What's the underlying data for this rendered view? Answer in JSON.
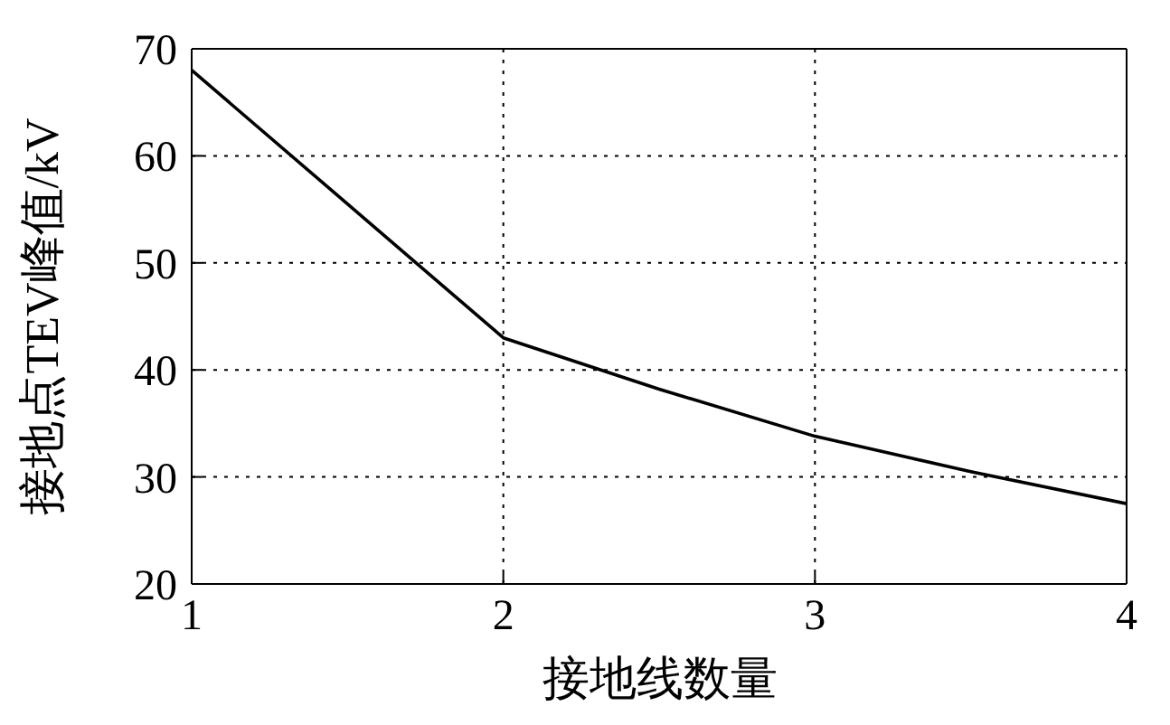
{
  "chart_data": {
    "type": "line",
    "xlabel": "接地线数量",
    "ylabel": "接地点TEV峰值/kV",
    "x": [
      1,
      1.5,
      2,
      2.5,
      3,
      3.5,
      4
    ],
    "series": [
      {
        "color": "#000000",
        "values": [
          68,
          55.5,
          43,
          38.2,
          33.8,
          30.5,
          27.5
        ]
      }
    ],
    "xlim": [
      1,
      4
    ],
    "xticks": [
      1,
      2,
      3,
      4
    ],
    "ylim": [
      20,
      70
    ],
    "yticks": [
      20,
      30,
      40,
      50,
      60,
      70
    ],
    "grid": true,
    "marker": "none",
    "line_style": "solid"
  }
}
